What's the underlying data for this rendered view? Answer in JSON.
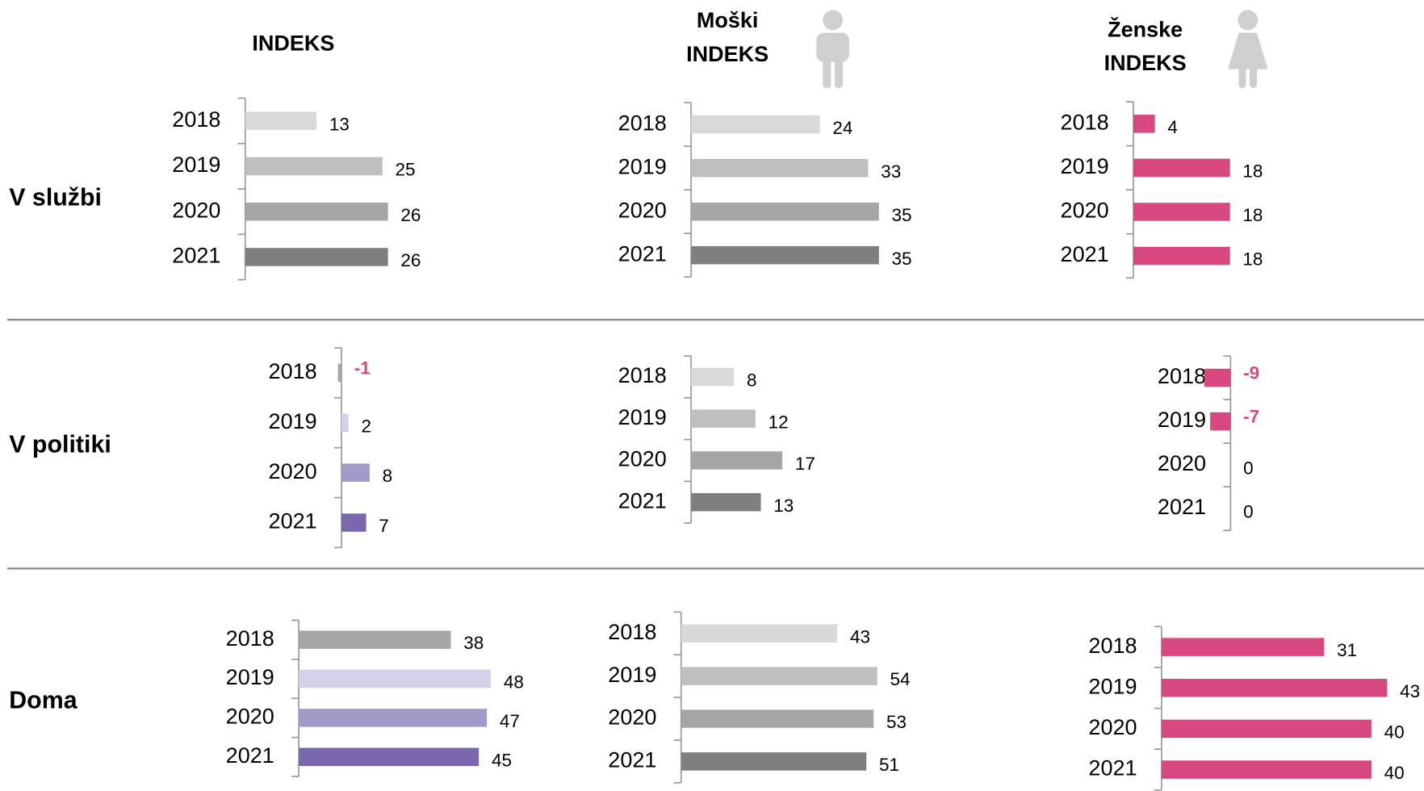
{
  "column_titles": [
    [
      "INDEKS"
    ],
    [
      "Moški",
      "INDEKS"
    ],
    [
      "Ženske",
      "INDEKS"
    ]
  ],
  "row_titles": [
    "V službi",
    "V politiki",
    "Doma"
  ],
  "chart_data": [
    {
      "type": "bar",
      "orientation": "horizontal",
      "categories": [
        "2018",
        "2019",
        "2020",
        "2021"
      ],
      "values": [
        13,
        25,
        26,
        26
      ],
      "colors": [
        "#d9d9d9",
        "#bfbfbf",
        "#a6a6a6",
        "#7f7f7f"
      ],
      "label_colors": [
        "#000000",
        "#000000",
        "#000000",
        "#000000"
      ],
      "xlim": [
        0,
        43
      ]
    },
    {
      "type": "bar",
      "orientation": "horizontal",
      "categories": [
        "2018",
        "2019",
        "2020",
        "2021"
      ],
      "values": [
        24,
        33,
        35,
        35
      ],
      "colors": [
        "#d9d9d9",
        "#bfbfbf",
        "#a6a6a6",
        "#7f7f7f"
      ],
      "label_colors": [
        "#000000",
        "#000000",
        "#000000",
        "#000000"
      ],
      "xlim": [
        0,
        44
      ]
    },
    {
      "type": "bar",
      "orientation": "horizontal",
      "categories": [
        "2018",
        "2019",
        "2020",
        "2021"
      ],
      "values": [
        4,
        18,
        18,
        18
      ],
      "colors": [
        "#d6487e",
        "#d6487e",
        "#d6487e",
        "#d6487e"
      ],
      "label_colors": [
        "#000000",
        "#000000",
        "#000000",
        "#000000"
      ],
      "xlim": [
        0,
        44
      ]
    },
    {
      "type": "bar",
      "orientation": "horizontal",
      "categories": [
        "2018",
        "2019",
        "2020",
        "2021"
      ],
      "values": [
        -1,
        2,
        8,
        7
      ],
      "colors": [
        "#a6a6a6",
        "#d5d1ea",
        "#a29bc8",
        "#7a68ad"
      ],
      "label_colors": [
        "#d6487e",
        "#000000",
        "#000000",
        "#000000"
      ],
      "xlim": [
        -2,
        65
      ]
    },
    {
      "type": "bar",
      "orientation": "horizontal",
      "categories": [
        "2018",
        "2019",
        "2020",
        "2021"
      ],
      "values": [
        8,
        12,
        17,
        13
      ],
      "colors": [
        "#d9d9d9",
        "#bfbfbf",
        "#a6a6a6",
        "#7f7f7f"
      ],
      "label_colors": [
        "#000000",
        "#000000",
        "#000000",
        "#000000"
      ],
      "xlim": [
        0,
        44
      ]
    },
    {
      "type": "bar",
      "orientation": "horizontal",
      "categories": [
        "2018",
        "2019",
        "2020",
        "2021"
      ],
      "values": [
        -9,
        -7,
        0,
        0
      ],
      "colors": [
        "#d6487e",
        "#d6487e",
        "#d6487e",
        "#d6487e"
      ],
      "label_colors": [
        "#d6487e",
        "#d6487e",
        "#000000",
        "#000000"
      ],
      "xlim": [
        -10,
        71
      ]
    },
    {
      "type": "bar",
      "orientation": "horizontal",
      "categories": [
        "2018",
        "2019",
        "2020",
        "2021"
      ],
      "values": [
        38,
        48,
        47,
        45
      ],
      "colors": [
        "#a6a6a6",
        "#d5d1ea",
        "#a29bc8",
        "#7a68ad"
      ],
      "label_colors": [
        "#000000",
        "#000000",
        "#000000",
        "#000000"
      ],
      "xlim": [
        0,
        59
      ]
    },
    {
      "type": "bar",
      "orientation": "horizontal",
      "categories": [
        "2018",
        "2019",
        "2020",
        "2021"
      ],
      "values": [
        43,
        54,
        53,
        51
      ],
      "colors": [
        "#d9d9d9",
        "#bfbfbf",
        "#a6a6a6",
        "#7f7f7f"
      ],
      "label_colors": [
        "#000000",
        "#000000",
        "#000000",
        "#000000"
      ],
      "xlim": [
        0,
        65
      ]
    },
    {
      "type": "bar",
      "orientation": "horizontal",
      "categories": [
        "2018",
        "2019",
        "2020",
        "2021"
      ],
      "values": [
        31,
        43,
        40,
        40
      ],
      "colors": [
        "#d6487e",
        "#d6487e",
        "#d6487e",
        "#d6487e"
      ],
      "label_colors": [
        "#000000",
        "#000000",
        "#000000",
        "#000000"
      ],
      "xlim": [
        0,
        45
      ]
    }
  ]
}
